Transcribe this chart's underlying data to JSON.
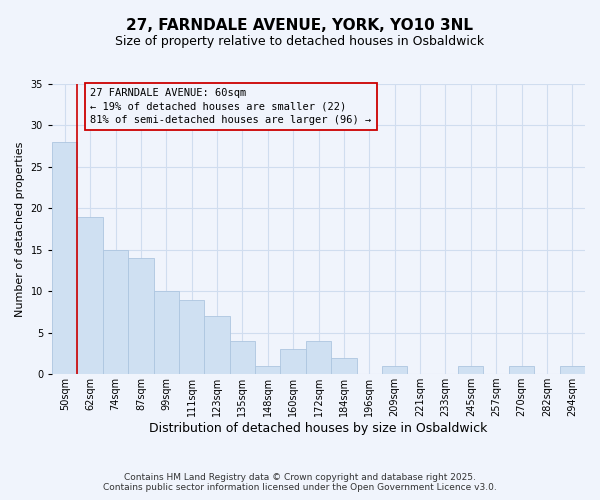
{
  "title": "27, FARNDALE AVENUE, YORK, YO10 3NL",
  "subtitle": "Size of property relative to detached houses in Osbaldwick",
  "xlabel": "Distribution of detached houses by size in Osbaldwick",
  "ylabel": "Number of detached properties",
  "bar_color": "#cfe0f2",
  "bar_edge_color": "#adc6e0",
  "marker_line_color": "#cc0000",
  "background_color": "#f0f4fc",
  "grid_color": "#d0ddef",
  "categories": [
    "50sqm",
    "62sqm",
    "74sqm",
    "87sqm",
    "99sqm",
    "111sqm",
    "123sqm",
    "135sqm",
    "148sqm",
    "160sqm",
    "172sqm",
    "184sqm",
    "196sqm",
    "209sqm",
    "221sqm",
    "233sqm",
    "245sqm",
    "257sqm",
    "270sqm",
    "282sqm",
    "294sqm"
  ],
  "values": [
    28,
    19,
    15,
    14,
    10,
    9,
    7,
    4,
    1,
    3,
    4,
    2,
    0,
    1,
    0,
    0,
    1,
    0,
    1,
    0,
    1
  ],
  "marker_bar_index": 1,
  "annotation_line1": "27 FARNDALE AVENUE: 60sqm",
  "annotation_line2": "← 19% of detached houses are smaller (22)",
  "annotation_line3": "81% of semi-detached houses are larger (96) →",
  "ylim": [
    0,
    35
  ],
  "yticks": [
    0,
    5,
    10,
    15,
    20,
    25,
    30,
    35
  ],
  "footer_line1": "Contains HM Land Registry data © Crown copyright and database right 2025.",
  "footer_line2": "Contains public sector information licensed under the Open Government Licence v3.0.",
  "title_fontsize": 11,
  "subtitle_fontsize": 9,
  "xlabel_fontsize": 9,
  "ylabel_fontsize": 8,
  "tick_fontsize": 7,
  "annotation_fontsize": 7.5,
  "footer_fontsize": 6.5
}
